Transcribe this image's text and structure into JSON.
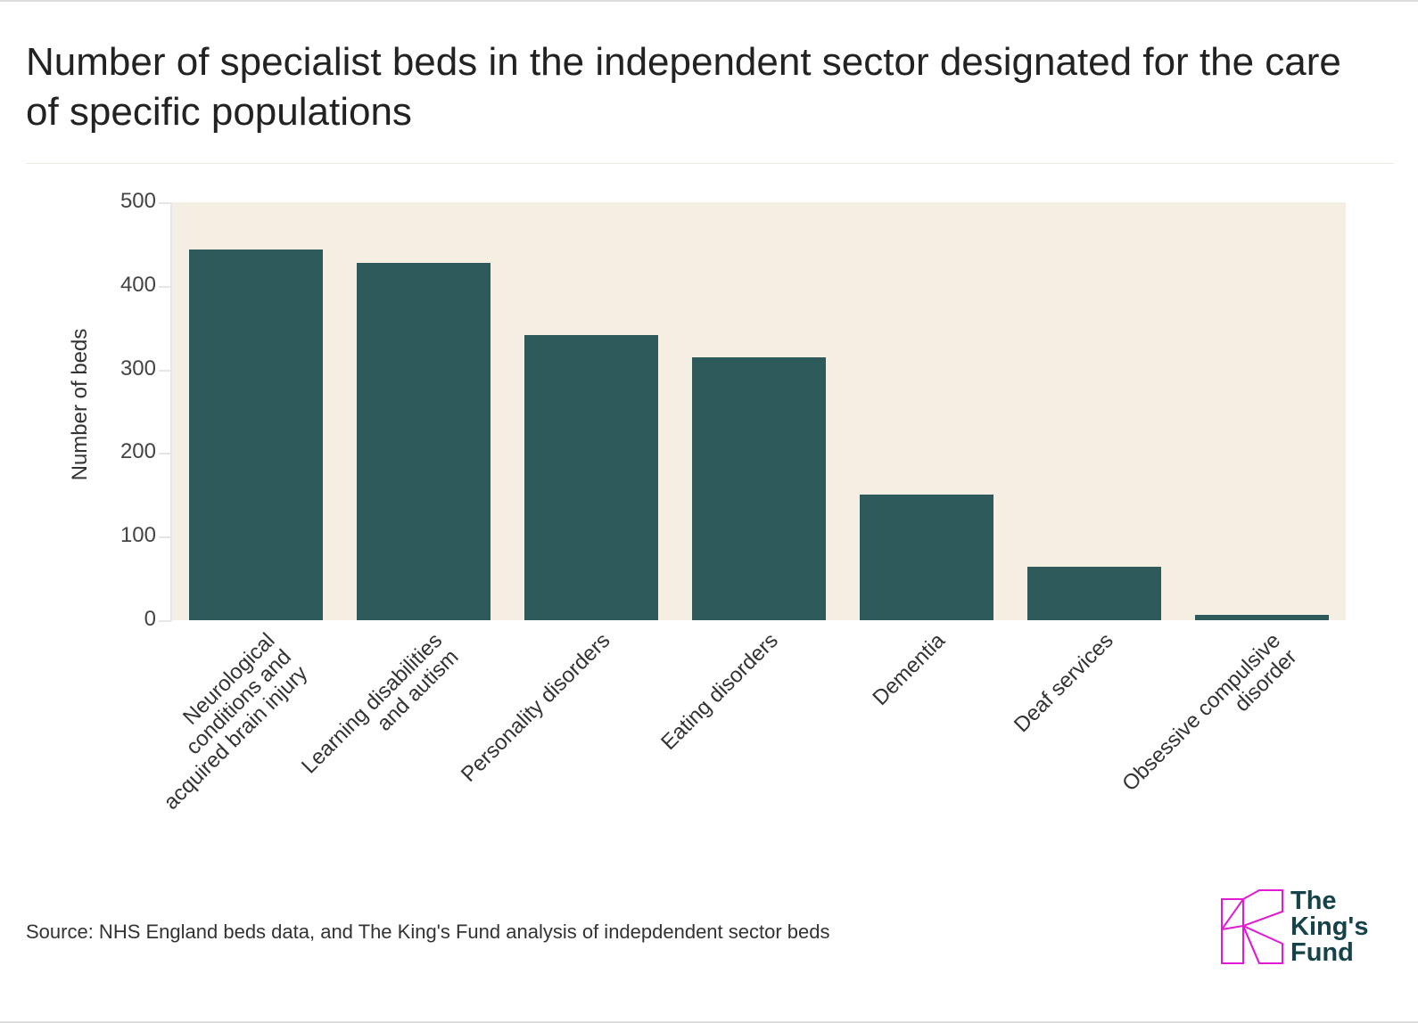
{
  "title": "Number of specialist beds in the independent sector designated for the care of specific populations",
  "source": "Source: NHS England beds data, and The King's Fund analysis of indepdendent sector beds",
  "logo": {
    "line1": "The",
    "line2": "King's",
    "line3": "Fund"
  },
  "colors": {
    "bar": "#2f5a5c",
    "plot_bg": "#f4eee3",
    "logo_pink": "#e21bd2",
    "logo_text": "#16434a"
  },
  "chart_data": {
    "type": "bar",
    "title": "Number of specialist beds in the independent sector designated for the care of specific populations",
    "xlabel": "",
    "ylabel": "Number of beds",
    "ylim": [
      0,
      500
    ],
    "yticks": [
      0,
      100,
      200,
      300,
      400,
      500
    ],
    "categories": [
      "Neurological conditions and acquired brain injury",
      "Learning disabilities and autism",
      "Personality disorders",
      "Eating disorders",
      "Dementia",
      "Deaf services",
      "Obsessive compulsive disorder"
    ],
    "values": [
      443,
      427,
      341,
      314,
      150,
      64,
      6
    ],
    "grid": false,
    "legend": null
  },
  "axis": {
    "ylabel": "Number of beds",
    "yticks": [
      "0",
      "100",
      "200",
      "300",
      "400",
      "500"
    ]
  },
  "xlabels": [
    "Neurological\nconditions and\nacquired brain injury",
    "Learning disabilities\nand autism",
    "Personality disorders",
    "Eating disorders",
    "Dementia",
    "Deaf services",
    "Obsessive compulsive\ndisorder"
  ]
}
